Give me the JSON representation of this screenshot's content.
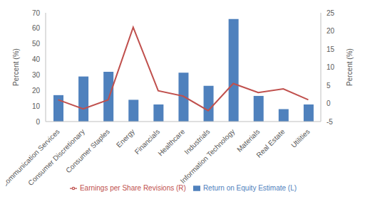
{
  "chart_data": {
    "type": "bar",
    "categories": [
      "Communication Services",
      "Consumer Discretionary",
      "Consumer Staples",
      "Energy",
      "Financials",
      "Healthcare",
      "Industrials",
      "Information Technology",
      "Materials",
      "Real Estate",
      "Utilities"
    ],
    "series": [
      {
        "name": "Return on Equity Estimate (L)",
        "type": "bar",
        "color": "#4f81bd",
        "values": [
          17,
          29,
          32,
          14,
          11,
          31.5,
          23,
          66,
          16.5,
          8,
          11
        ]
      },
      {
        "name": "Earnings per Share Revisions (R)",
        "type": "line",
        "axis": "y2",
        "color": "#c0504d",
        "values": [
          1,
          -1.5,
          1,
          21,
          3.5,
          2,
          -2,
          5.5,
          3,
          4,
          1
        ]
      }
    ],
    "y_label": "Percent (%)",
    "y2_label": "Percent (%)",
    "ylim": [
      0,
      70
    ],
    "yticks": [
      0,
      10,
      20,
      30,
      40,
      50,
      60,
      70
    ],
    "y2lim": [
      -5,
      25
    ],
    "y2ticks": [
      -5,
      0,
      5,
      10,
      15,
      20,
      25
    ],
    "grid": false,
    "legend": "bottom"
  }
}
